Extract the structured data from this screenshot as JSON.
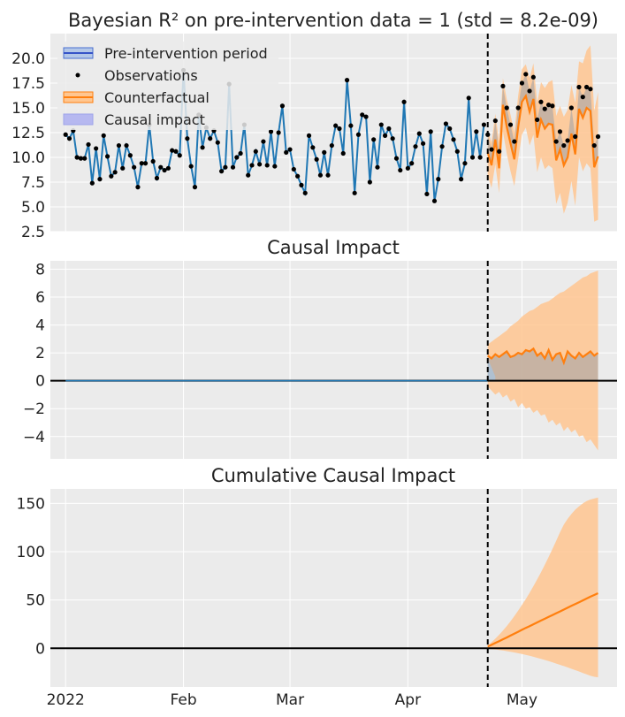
{
  "chart_data": [
    {
      "type": "line",
      "title": "Bayesian R² on pre-intervention data = 1 (std = 8.2e-09)",
      "ylim": [
        2.5,
        22.5
      ],
      "yticks": [
        2.5,
        5.0,
        7.5,
        10.0,
        12.5,
        15.0,
        17.5,
        20.0
      ],
      "ytick_labels": [
        "2.5",
        "5.0",
        "7.5",
        "10.0",
        "12.5",
        "15.0",
        "17.5",
        "20.0"
      ],
      "grid": true,
      "legend_position": "upper-left",
      "legend": [
        "Pre-intervention period",
        "Observations",
        "Counterfactual",
        "Causal impact"
      ],
      "intervention_day": 111,
      "series": [
        {
          "name": "Pre-intervention period",
          "values": [
            12.3,
            11.9,
            12.7,
            10.0,
            9.9,
            9.9,
            11.3,
            7.4,
            10.9,
            7.8,
            12.2,
            10.1,
            8.1,
            8.5,
            11.2,
            8.9,
            11.2,
            10.2,
            9.0,
            7.0,
            9.4,
            9.4,
            13.3,
            9.6,
            7.9,
            9.0,
            8.7,
            8.9,
            10.7,
            10.6,
            10.2,
            18.8,
            11.9,
            9.1,
            7.0,
            14.3,
            11.0,
            13.0,
            11.9,
            12.7,
            11.5,
            8.6,
            9.0,
            17.4,
            9.0,
            10.0,
            10.4,
            13.3,
            8.2,
            9.2,
            10.6,
            9.3,
            11.6,
            9.2,
            12.6,
            9.1,
            12.5,
            15.2,
            10.5,
            10.8,
            8.8,
            8.1,
            7.2,
            6.4,
            12.2,
            11.0,
            9.8,
            8.2,
            10.5,
            8.2,
            11.2,
            13.2,
            12.9,
            10.4,
            17.8,
            13.2,
            6.4,
            12.3,
            14.3,
            14.1,
            7.5,
            11.8,
            9.0,
            13.3,
            12.2,
            12.9,
            11.9,
            9.9,
            8.7,
            15.6,
            8.9,
            9.4,
            11.1,
            12.4,
            11.4,
            6.3,
            12.6,
            5.6,
            7.8,
            11.1,
            13.4,
            12.9,
            11.8,
            10.6,
            7.8,
            9.4,
            16.0,
            10.0,
            12.6,
            10.0,
            13.3
          ]
        },
        {
          "name": "Observations",
          "values": [
            12.3,
            11.9,
            12.7,
            10.0,
            9.9,
            9.9,
            11.3,
            7.4,
            10.9,
            7.8,
            12.2,
            10.1,
            8.1,
            8.5,
            11.2,
            8.9,
            11.2,
            10.2,
            9.0,
            7.0,
            9.4,
            9.4,
            13.3,
            9.6,
            7.9,
            9.0,
            8.7,
            8.9,
            10.7,
            10.6,
            10.2,
            18.8,
            11.9,
            9.1,
            7.0,
            14.3,
            11.0,
            13.0,
            11.9,
            12.7,
            11.5,
            8.6,
            9.0,
            17.4,
            9.0,
            10.0,
            10.4,
            13.3,
            8.2,
            9.2,
            10.6,
            9.3,
            11.6,
            9.2,
            12.6,
            9.1,
            12.5,
            15.2,
            10.5,
            10.8,
            8.8,
            8.1,
            7.2,
            6.4,
            12.2,
            11.0,
            9.8,
            8.2,
            10.5,
            8.2,
            11.2,
            13.2,
            12.9,
            10.4,
            17.8,
            13.2,
            6.4,
            12.3,
            14.3,
            14.1,
            7.5,
            11.8,
            9.0,
            13.3,
            12.2,
            12.9,
            11.9,
            9.9,
            8.7,
            15.6,
            8.9,
            9.4,
            11.1,
            12.4,
            11.4,
            6.3,
            12.6,
            5.6,
            7.8,
            11.1,
            13.4,
            12.9,
            11.8,
            10.6,
            7.8,
            9.4,
            16.0,
            10.0,
            12.6,
            10.0,
            13.3,
            12.3,
            10.8,
            13.7,
            10.6,
            17.2,
            15.0,
            13.3,
            11.6,
            15.0,
            17.5,
            18.4,
            16.7,
            18.1,
            13.8,
            15.6,
            14.9,
            15.3,
            15.2,
            11.6,
            12.6,
            11.2,
            11.7,
            15.0,
            12.1,
            17.1,
            16.1,
            17.1,
            16.9,
            11.2,
            12.1
          ]
        },
        {
          "name": "Counterfactual",
          "values": [
            10.5,
            9.2,
            11.8,
            8.9,
            15.3,
            13.1,
            11.4,
            9.8,
            13.0,
            15.6,
            16.2,
            14.6,
            15.9,
            12.0,
            13.8,
            12.9,
            13.4,
            13.3,
            9.7,
            10.8,
            9.2,
            10.0,
            12.4,
            10.3,
            14.9,
            14.0,
            15.0,
            14.7,
            9.0,
            10.1
          ]
        },
        {
          "name": "Counterfactual lower",
          "values": [
            8.2,
            6.9,
            9.3,
            6.4,
            12.6,
            10.4,
            8.6,
            7.1,
            9.8,
            12.3,
            13.0,
            11.2,
            12.3,
            8.5,
            10.0,
            8.8,
            9.2,
            8.9,
            5.3,
            6.4,
            4.3,
            5.4,
            7.6,
            5.1,
            10.0,
            8.6,
            9.4,
            8.9,
            3.5,
            3.7
          ]
        },
        {
          "name": "Counterfactual upper",
          "values": [
            12.8,
            11.5,
            14.4,
            11.6,
            18.0,
            15.9,
            14.3,
            12.5,
            16.2,
            18.9,
            19.4,
            18.0,
            19.5,
            15.5,
            17.6,
            17.0,
            17.6,
            17.8,
            14.2,
            15.2,
            14.1,
            14.8,
            17.3,
            15.5,
            19.7,
            19.5,
            20.8,
            21.3,
            14.7,
            16.6
          ]
        }
      ]
    },
    {
      "type": "line",
      "title": "Causal Impact",
      "ylim": [
        -5.6,
        8.6
      ],
      "yticks": [
        -4,
        -2,
        0,
        2,
        4,
        6,
        8
      ],
      "ytick_labels": [
        "−4",
        "−2",
        "0",
        "2",
        "4",
        "6",
        "8"
      ],
      "grid": true,
      "series": [
        {
          "name": "Pointwise impact",
          "values": [
            1.8,
            1.6,
            1.9,
            1.7,
            1.9,
            2.1,
            1.7,
            1.8,
            2.0,
            1.9,
            2.2,
            2.1,
            2.3,
            1.8,
            2.0,
            1.6,
            2.2,
            1.5,
            1.9,
            2.0,
            1.3,
            2.1,
            1.8,
            1.6,
            2.0,
            1.7,
            1.9,
            2.1,
            1.8,
            2.0
          ]
        },
        {
          "name": "Impact lower",
          "values": [
            -0.4,
            -0.7,
            -1.0,
            -0.8,
            -1.2,
            -1.0,
            -1.5,
            -1.3,
            -1.9,
            -1.6,
            -2.0,
            -1.9,
            -2.3,
            -2.1,
            -2.5,
            -2.4,
            -3.0,
            -2.8,
            -3.2,
            -3.0,
            -3.6,
            -3.3,
            -3.7,
            -3.5,
            -4.0,
            -3.9,
            -4.4,
            -4.2,
            -4.6,
            -5.0
          ]
        },
        {
          "name": "Impact upper",
          "values": [
            2.6,
            2.8,
            3.0,
            3.2,
            3.4,
            3.6,
            3.9,
            4.1,
            4.3,
            4.6,
            4.8,
            5.0,
            5.1,
            5.3,
            5.5,
            5.6,
            5.7,
            5.9,
            6.1,
            6.3,
            6.4,
            6.6,
            6.8,
            7.0,
            7.2,
            7.4,
            7.5,
            7.7,
            7.8,
            7.9
          ]
        }
      ]
    },
    {
      "type": "line",
      "title": "Cumulative Causal Impact",
      "ylim": [
        -40,
        165
      ],
      "yticks": [
        0,
        50,
        100,
        150
      ],
      "ytick_labels": [
        "0",
        "50",
        "100",
        "150"
      ],
      "xtick_days": [
        0,
        31,
        59,
        90,
        120
      ],
      "xtick_labels": [
        "2022",
        "Feb",
        "Mar",
        "Apr",
        "May"
      ],
      "grid": true,
      "series": [
        {
          "name": "Cumulative impact",
          "values": [
            1.8,
            3.6,
            5.5,
            7.4,
            9.3,
            11.2,
            13.2,
            15.1,
            17.1,
            19.1,
            21.1,
            23.0,
            24.9,
            26.8,
            28.7,
            30.6,
            32.5,
            34.4,
            36.3,
            38.2,
            40.1,
            42.0,
            43.9,
            45.8,
            47.7,
            49.6,
            51.5,
            53.4,
            55.2,
            57.0
          ]
        },
        {
          "name": "Cumulative lower",
          "values": [
            -0.5,
            -0.8,
            -1.2,
            -1.7,
            -2.3,
            -2.9,
            -3.6,
            -4.3,
            -5.1,
            -5.9,
            -6.8,
            -7.8,
            -8.8,
            -9.9,
            -11.0,
            -12.1,
            -13.3,
            -14.5,
            -15.8,
            -17.1,
            -18.4,
            -19.8,
            -21.2,
            -22.6,
            -24.0,
            -25.5,
            -27.0,
            -28.5,
            -29.5,
            -30.0
          ]
        },
        {
          "name": "Cumulative upper",
          "values": [
            3.0,
            6.3,
            10.0,
            14.0,
            18.3,
            23.0,
            28.0,
            33.3,
            38.9,
            44.8,
            51.0,
            57.5,
            64.3,
            71.4,
            78.8,
            86.5,
            94.5,
            102.8,
            111.4,
            120.2,
            128.0,
            134.0,
            139.0,
            143.5,
            147.0,
            150.0,
            152.5,
            154.0,
            155.0,
            156.0
          ]
        }
      ]
    }
  ],
  "colors": {
    "background": "#ebebeb",
    "grid": "#ffffff",
    "pre_line": "#1f77b4",
    "counterfactual": "#ff7f0e",
    "counterfactual_band": "#ffc690",
    "impact_band": "#a9c3dc",
    "legend_impact": "#b6b8f0",
    "observations": "#000000"
  }
}
